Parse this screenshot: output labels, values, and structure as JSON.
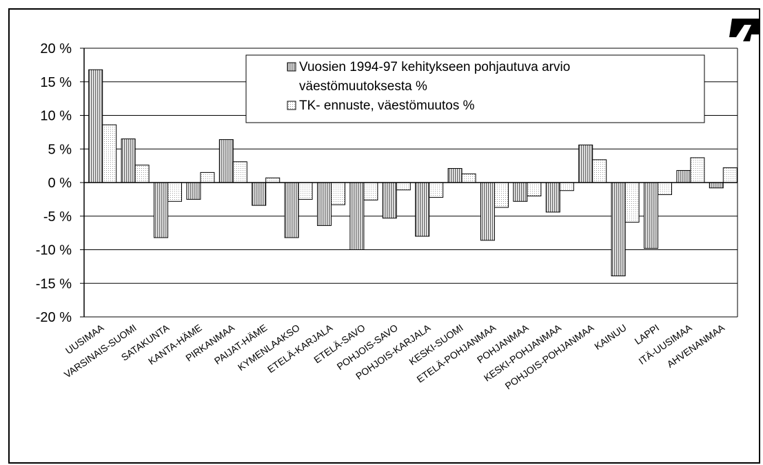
{
  "chart_data": {
    "type": "bar",
    "categories": [
      "UUSIMAA",
      "VARSINAIS-SUOMI",
      "SATAKUNTA",
      "KANTA-HÄME",
      "PIRKANMAA",
      "PAIJAT-HÄME",
      "KYMENLAAKSO",
      "ETELÄ-KARJALA",
      "ETELÄ-SAVO",
      "POHJOIS-SAVO",
      "POHJOIS-KARJALA",
      "KESKI-SUOMI",
      "ETELÄ-POHJANMAA",
      "POHJANMAA",
      "KESKI-POHJANMAA",
      "POHJOIS-POHJANMAA",
      "KAINUU",
      "LAPPI",
      "ITÄ-UUSIMAA",
      "AHVENANMAA"
    ],
    "series": [
      {
        "name": "Vuosien 1994-97 kehitykseen pohjautuva arvio väestömuutoksesta %",
        "values": [
          16.8,
          6.5,
          -8.2,
          -2.5,
          6.4,
          -3.4,
          -8.2,
          -6.4,
          -10.0,
          -5.3,
          -8.0,
          2.1,
          -8.6,
          -2.8,
          -4.4,
          5.6,
          -13.9,
          -9.8,
          1.8,
          -0.8
        ],
        "color": "#a6a6a6",
        "pattern": "vertical-lines"
      },
      {
        "name": "TK- ennuste, väestömuutos %",
        "values": [
          8.6,
          2.6,
          -2.8,
          1.5,
          3.1,
          0.7,
          -2.5,
          -3.3,
          -2.6,
          -1.1,
          -2.2,
          1.3,
          -3.7,
          -2.0,
          -1.2,
          3.4,
          -5.9,
          -1.8,
          3.7,
          2.2
        ],
        "color": "#f0f0f0",
        "pattern": "dots"
      }
    ],
    "y_ticks": [
      "20 %",
      "15 %",
      "10 %",
      "5 %",
      "0 %",
      "-5 %",
      "-10 %",
      "-15 %",
      "-20 %"
    ],
    "ylim": [
      -20,
      20
    ],
    "grid": true,
    "legend_position": "top-right",
    "legend_lines": {
      "s1_line1": "Vuosien 1994-97 kehitykseen pohjautuva arvio",
      "s1_line2": "väestömuutoksesta %",
      "s2_line1": "TK- ennuste, väestömuutos %"
    },
    "xlabel": "",
    "ylabel": ""
  },
  "logo": {
    "name": "logo-icon"
  }
}
